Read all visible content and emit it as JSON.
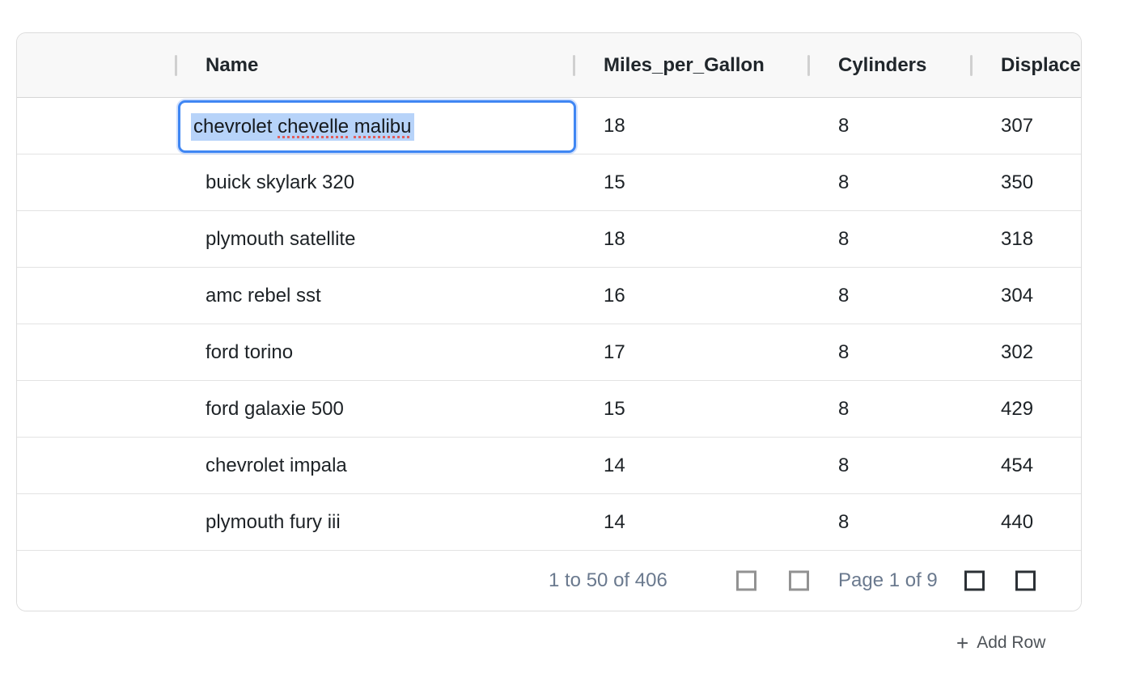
{
  "table": {
    "columns": [
      {
        "id": "gutter",
        "label": ""
      },
      {
        "id": "name",
        "label": "Name"
      },
      {
        "id": "mpg",
        "label": "Miles_per_Gallon"
      },
      {
        "id": "cylinders",
        "label": "Cylinders"
      },
      {
        "id": "displacement",
        "label": "Displacement"
      }
    ],
    "rows": [
      {
        "name": "chevrolet chevelle malibu",
        "mpg": 18,
        "cylinders": 8,
        "displacement": 307,
        "editing": true
      },
      {
        "name": "buick skylark 320",
        "mpg": 15,
        "cylinders": 8,
        "displacement": 350
      },
      {
        "name": "plymouth satellite",
        "mpg": 18,
        "cylinders": 8,
        "displacement": 318
      },
      {
        "name": "amc rebel sst",
        "mpg": 16,
        "cylinders": 8,
        "displacement": 304
      },
      {
        "name": "ford torino",
        "mpg": 17,
        "cylinders": 8,
        "displacement": 302
      },
      {
        "name": "ford galaxie 500",
        "mpg": 15,
        "cylinders": 8,
        "displacement": 429
      },
      {
        "name": "chevrolet impala",
        "mpg": 14,
        "cylinders": 8,
        "displacement": 454
      },
      {
        "name": "plymouth fury iii",
        "mpg": 14,
        "cylinders": 8,
        "displacement": 440
      }
    ]
  },
  "editor": {
    "value": "chevrolet chevelle malibu",
    "words": [
      {
        "text": "chevrolet",
        "misspelled": false
      },
      {
        "text": "chevelle",
        "misspelled": true
      },
      {
        "text": "malibu",
        "misspelled": true
      }
    ]
  },
  "pagination": {
    "row_summary": "1 to 50 of 406",
    "page_summary": "Page 1 of 9",
    "icons": [
      "first-page-icon",
      "previous-page-icon",
      "next-page-icon",
      "last-page-icon"
    ]
  },
  "actions": {
    "add_row_icon": "+",
    "add_row_label": "Add Row"
  },
  "colors": {
    "accent_blue": "#3f86f3",
    "selection_blue": "#b7d3f9",
    "spellcheck_red": "#e25d5d",
    "footer_text": "#6a798e",
    "header_bg": "#f8f8f8",
    "row_border": "#e3e3e3"
  }
}
